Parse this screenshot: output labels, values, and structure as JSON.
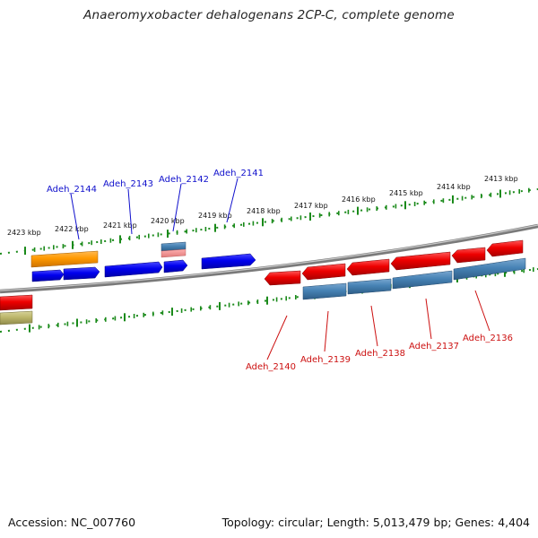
{
  "title": "Anaeromyxobacter dehalogenans 2CP-C, complete genome",
  "footer": {
    "accession": "Accession: NC_007760",
    "topology": "Topology: circular; Length: 5,013,479 bp; Genes: 4,404"
  },
  "scale_labels": [
    "2423 kbp",
    "2422 kbp",
    "2421 kbp",
    "2420 kbp",
    "2419 kbp",
    "2418 kbp",
    "2417 kbp",
    "2416 kbp",
    "2415 kbp",
    "2414 kbp",
    "2413 kbp"
  ],
  "gene_labels_top": [
    "Adeh_2144",
    "Adeh_2143",
    "Adeh_2142",
    "Adeh_2141"
  ],
  "gene_labels_bottom": [
    "Adeh_2140",
    "Adeh_2139",
    "Adeh_2138",
    "Adeh_2137",
    "Adeh_2136"
  ],
  "colors": {
    "forward_cds": "#0000ee",
    "reverse_cds": "#ee0000",
    "forward_gene": "#ff9900",
    "reverse_gene": "#4682b4",
    "other_feature": "#bdb76b",
    "scale_ticks": "#1a8a1a",
    "backbone": "#808080",
    "label_top": "#1010cc",
    "label_bottom": "#cc1010"
  }
}
